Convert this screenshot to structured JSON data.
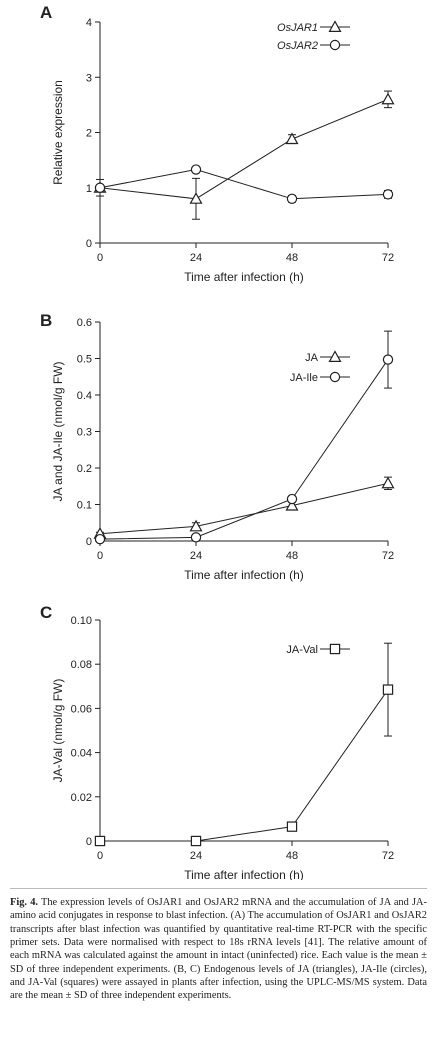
{
  "chart_data": [
    {
      "panel": "A",
      "type": "line",
      "x": [
        0,
        24,
        48,
        72
      ],
      "xlabel": "Time after infection (h)",
      "ylabel": "Relative expression",
      "xlim": [
        0,
        72
      ],
      "ylim": [
        0,
        4
      ],
      "xticks": [
        "0",
        "24",
        "48",
        "72"
      ],
      "yticks": [
        "0",
        "1",
        "2",
        "3",
        "4"
      ],
      "legend_position": "top-right",
      "series": [
        {
          "name": "OsJAR1",
          "marker": "triangle",
          "values": [
            1.0,
            0.8,
            1.88,
            2.6
          ],
          "error": [
            0.15,
            0.37,
            0.08,
            0.15
          ]
        },
        {
          "name": "OsJAR2",
          "marker": "circle",
          "values": [
            1.0,
            1.33,
            0.8,
            0.88
          ],
          "error": [
            0.05,
            0.0,
            0.06,
            0.07
          ]
        }
      ]
    },
    {
      "panel": "B",
      "type": "line",
      "x": [
        0,
        24,
        48,
        72
      ],
      "xlabel": "Time after infection (h)",
      "ylabel": "JA and JA-Ile (nmol/g FW)",
      "xlim": [
        0,
        72
      ],
      "ylim": [
        0,
        0.6
      ],
      "xticks": [
        "0",
        "24",
        "48",
        "72"
      ],
      "yticks": [
        "0",
        "0.1",
        "0.2",
        "0.3",
        "0.4",
        "0.5",
        "0.6"
      ],
      "legend_position": "top-right",
      "series": [
        {
          "name": "JA",
          "marker": "triangle",
          "values": [
            0.02,
            0.04,
            0.097,
            0.158
          ],
          "error": [
            0.004,
            0.01,
            0.01,
            0.017
          ]
        },
        {
          "name": "JA-Ile",
          "marker": "circle",
          "values": [
            0.005,
            0.01,
            0.115,
            0.497
          ],
          "error": [
            0.002,
            0.003,
            0.008,
            0.078
          ]
        }
      ]
    },
    {
      "panel": "C",
      "type": "line",
      "x": [
        0,
        24,
        48,
        72
      ],
      "xlabel": "Time after infection (h)",
      "ylabel": "JA-Val (nmol/g FW)",
      "xlim": [
        0,
        72
      ],
      "ylim": [
        0,
        0.1
      ],
      "xticks": [
        "0",
        "24",
        "48",
        "72"
      ],
      "yticks": [
        "0",
        "0.02",
        "0.04",
        "0.06",
        "0.08",
        "0.10"
      ],
      "legend_position": "top-right",
      "series": [
        {
          "name": "JA-Val",
          "marker": "square",
          "values": [
            0.0,
            0.0,
            0.0065,
            0.0685
          ],
          "error": [
            0.0,
            0.0,
            0.0,
            0.021
          ]
        }
      ]
    }
  ],
  "caption": {
    "label": "Fig. 4.",
    "text": "The expression levels of OsJAR1 and OsJAR2 mRNA and the accumulation of JA and JA-amino acid conjugates in response to blast infection. (A) The accumulation of OsJAR1 and OsJAR2 transcripts after blast infection was quantified by quantitative real-time RT-PCR with the specific primer sets. Data were normalised with respect to 18s rRNA levels [41]. The relative amount of each mRNA was calculated against the amount in intact (uninfected) rice. Each value is the mean ± SD of three independent experiments. (B, C) Endogenous levels of JA (triangles), JA-Ile (circles), and JA-Val (squares) were assayed in plants after infection, using the UPLC-MS/MS system. Data are the mean ± SD of three independent experiments."
  }
}
